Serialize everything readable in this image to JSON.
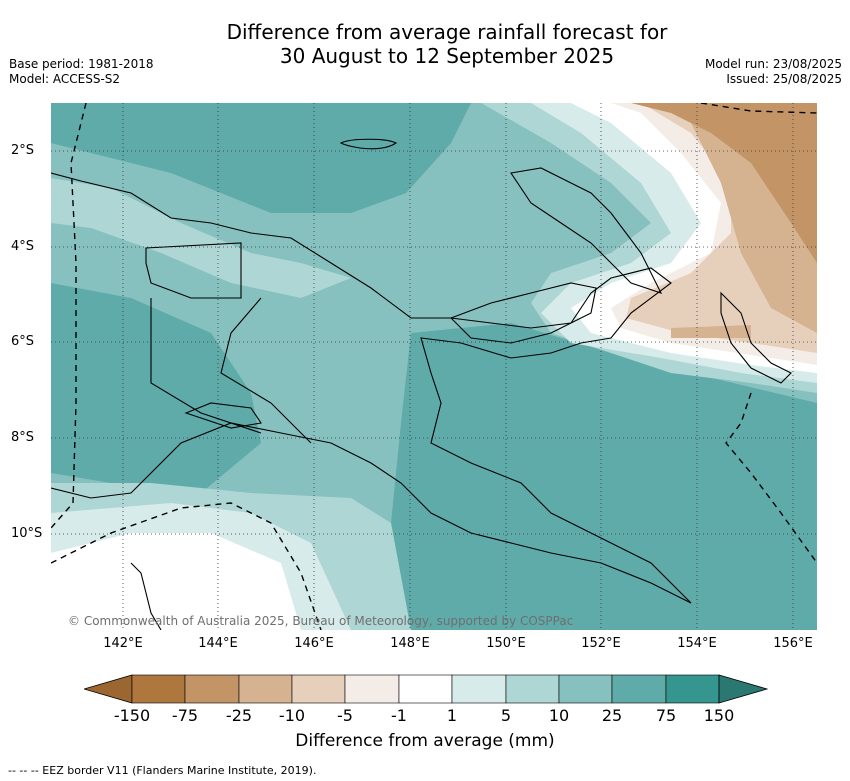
{
  "title_line1": "Difference from average rainfall forecast for",
  "title_line2": "30 August to 12 September 2025",
  "meta_left": [
    "Base period: 1981-2018",
    "Model: ACCESS-S2"
  ],
  "meta_right": [
    "Model run: 23/08/2025",
    "Issued: 25/08/2025"
  ],
  "y_ticks": [
    "2°S",
    "4°S",
    "6°S",
    "8°S",
    "10°S"
  ],
  "x_ticks": [
    "142°E",
    "144°E",
    "146°E",
    "148°E",
    "150°E",
    "152°E",
    "154°E",
    "156°E"
  ],
  "copyright": "© Commonwealth of Australia 2025, Bureau of Meteorology, supported by COSPPac",
  "colorbar": {
    "labels": [
      "-150",
      "-75",
      "-25",
      "-10",
      "-5",
      "-1",
      "1",
      "5",
      "10",
      "25",
      "75",
      "150"
    ],
    "colors": [
      "#9c6630",
      "#ad773d",
      "#c39566",
      "#d5b290",
      "#e6d0bc",
      "#f4ede7",
      "#ffffff",
      "#d6ebea",
      "#aed6d5",
      "#86c0bf",
      "#5eabaa",
      "#35968f",
      "#2b7771"
    ],
    "title": "Difference from average (mm)"
  },
  "footnote": "--  --  -- EEZ border V11 (Flanders Marine Institute, 2019).",
  "map_extent": {
    "lon": [
      141,
      157
    ],
    "lat": [
      -12,
      -1
    ]
  },
  "colors": {
    "land_border": "#000000",
    "eez_line": "#000000",
    "gridline": "#333333"
  }
}
